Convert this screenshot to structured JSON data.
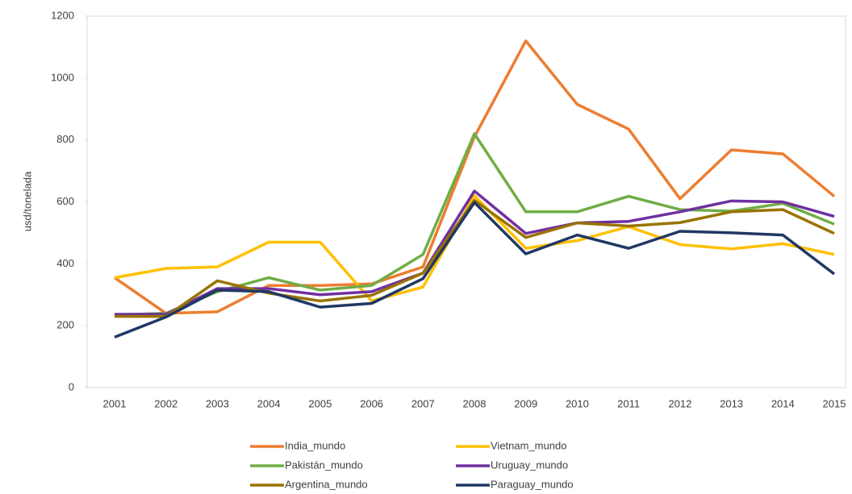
{
  "chart_data": {
    "type": "line",
    "y_axis_label": "usd/tonelada",
    "categories": [
      "2001",
      "2002",
      "2003",
      "2004",
      "2005",
      "2006",
      "2007",
      "2008",
      "2009",
      "2010",
      "2011",
      "2012",
      "2013",
      "2014",
      "2015"
    ],
    "ylim": [
      0,
      1200
    ],
    "yticks": [
      0,
      200,
      400,
      600,
      800,
      1000,
      1200
    ],
    "grid": false,
    "legend": "bottom",
    "series": [
      {
        "name": "India_mundo",
        "color": "#ed7d31",
        "values": [
          355,
          240,
          245,
          330,
          330,
          335,
          390,
          810,
          1120,
          915,
          835,
          610,
          768,
          755,
          618
        ]
      },
      {
        "name": "Vietnam_mundo",
        "color": "#ffc000",
        "values": [
          355,
          385,
          390,
          470,
          470,
          280,
          325,
          620,
          450,
          475,
          520,
          462,
          448,
          465,
          430
        ]
      },
      {
        "name": "Pakistán_mundo",
        "color": "#70ad47",
        "values": [
          235,
          240,
          310,
          355,
          315,
          330,
          430,
          820,
          568,
          568,
          618,
          575,
          570,
          595,
          528
        ]
      },
      {
        "name": "Uruguay_mundo",
        "color": "#7030a0",
        "values": [
          237,
          237,
          320,
          320,
          300,
          310,
          370,
          635,
          498,
          532,
          537,
          568,
          603,
          600,
          553
        ]
      },
      {
        "name": "Argentina_mundo",
        "color": "#997300",
        "values": [
          230,
          230,
          345,
          305,
          280,
          298,
          370,
          605,
          485,
          532,
          522,
          533,
          568,
          575,
          498
        ]
      },
      {
        "name": "Paraguay_mundo",
        "color": "#203864",
        "values": [
          163,
          228,
          315,
          310,
          260,
          272,
          352,
          598,
          432,
          493,
          450,
          505,
          500,
          493,
          367
        ]
      }
    ]
  }
}
